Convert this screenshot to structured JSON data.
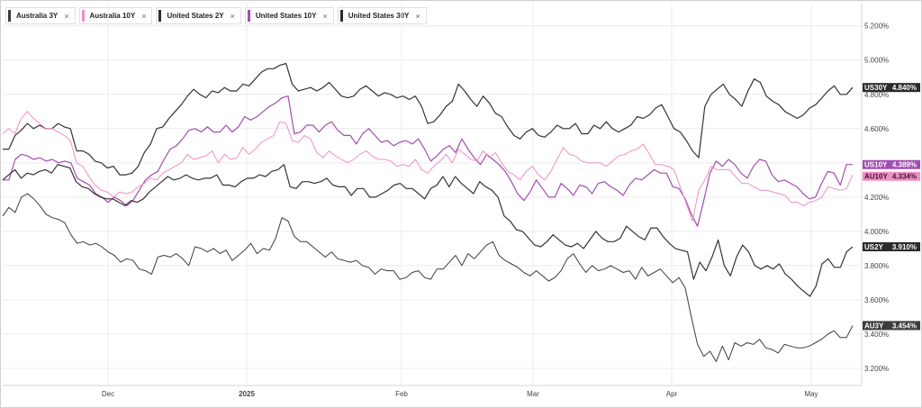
{
  "legend": [
    {
      "label": "Australia 3Y",
      "color": "#3c3c3c"
    },
    {
      "label": "Australia 10Y",
      "color": "#f28ec6"
    },
    {
      "label": "United States 2Y",
      "color": "#2b2b2b"
    },
    {
      "label": "United States 10Y",
      "color": "#a24db0"
    },
    {
      "label": "United States 30Y",
      "color": "#2b2b2b"
    }
  ],
  "close_icon": "×",
  "chart_data": {
    "type": "line",
    "x_labels": [
      "Dec",
      "2025",
      "Feb",
      "Mar",
      "Apr",
      "May"
    ],
    "y_ticks": [
      "5.200%",
      "5.000%",
      "4.800%",
      "4.600%",
      "4.400%",
      "4.200%",
      "4.000%",
      "3.800%",
      "3.600%",
      "3.400%",
      "3.200%"
    ],
    "ylim": [
      3.1,
      5.33
    ],
    "grid": true,
    "series": [
      {
        "name": "US30Y",
        "value_label": "4.840%",
        "color": "#333333",
        "tag_bg": "#2b2b2b",
        "tag_fg": "#ffffff",
        "width": 1.2,
        "values": [
          4.48,
          4.48,
          4.56,
          4.59,
          4.63,
          4.6,
          4.62,
          4.6,
          4.6,
          4.63,
          4.61,
          4.6,
          4.47,
          4.47,
          4.45,
          4.41,
          4.4,
          4.37,
          4.38,
          4.33,
          4.33,
          4.34,
          4.38,
          4.46,
          4.51,
          4.6,
          4.61,
          4.66,
          4.7,
          4.74,
          4.79,
          4.83,
          4.8,
          4.78,
          4.82,
          4.81,
          4.84,
          4.82,
          4.82,
          4.86,
          4.85,
          4.89,
          4.93,
          4.95,
          4.95,
          4.97,
          4.98,
          4.86,
          4.82,
          4.83,
          4.84,
          4.82,
          4.84,
          4.87,
          4.83,
          4.79,
          4.78,
          4.79,
          4.83,
          4.85,
          4.82,
          4.79,
          4.81,
          4.8,
          4.78,
          4.79,
          4.77,
          4.79,
          4.73,
          4.63,
          4.64,
          4.68,
          4.73,
          4.76,
          4.86,
          4.82,
          4.77,
          4.73,
          4.79,
          4.75,
          4.69,
          4.67,
          4.61,
          4.56,
          4.54,
          4.58,
          4.6,
          4.56,
          4.55,
          4.58,
          4.62,
          4.6,
          4.6,
          4.63,
          4.57,
          4.57,
          4.62,
          4.6,
          4.64,
          4.6,
          4.58,
          4.6,
          4.62,
          4.67,
          4.66,
          4.68,
          4.72,
          4.74,
          4.67,
          4.6,
          4.58,
          4.53,
          4.47,
          4.43,
          4.73,
          4.8,
          4.83,
          4.86,
          4.8,
          4.77,
          4.73,
          4.82,
          4.89,
          4.87,
          4.79,
          4.76,
          4.74,
          4.7,
          4.68,
          4.66,
          4.68,
          4.72,
          4.74,
          4.78,
          4.82,
          4.85,
          4.8,
          4.8,
          4.84
        ]
      },
      {
        "name": "US10Y",
        "value_label": "4.389%",
        "color": "#a24db0",
        "tag_bg": "#a24db0",
        "tag_fg": "#ffffff",
        "width": 1.2,
        "values": [
          4.3,
          4.3,
          4.42,
          4.45,
          4.44,
          4.42,
          4.43,
          4.41,
          4.42,
          4.4,
          4.41,
          4.4,
          4.31,
          4.29,
          4.27,
          4.22,
          4.2,
          4.17,
          4.2,
          4.18,
          4.15,
          4.18,
          4.24,
          4.3,
          4.33,
          4.35,
          4.42,
          4.48,
          4.5,
          4.54,
          4.59,
          4.6,
          4.58,
          4.61,
          4.58,
          4.58,
          4.62,
          4.58,
          4.61,
          4.67,
          4.65,
          4.67,
          4.7,
          4.73,
          4.75,
          4.78,
          4.79,
          4.57,
          4.58,
          4.62,
          4.62,
          4.58,
          4.62,
          4.64,
          4.59,
          4.56,
          4.56,
          4.51,
          4.57,
          4.6,
          4.56,
          4.52,
          4.53,
          4.5,
          4.52,
          4.53,
          4.51,
          4.54,
          4.48,
          4.41,
          4.44,
          4.48,
          4.5,
          4.46,
          4.54,
          4.48,
          4.43,
          4.39,
          4.45,
          4.42,
          4.39,
          4.35,
          4.29,
          4.22,
          4.18,
          4.23,
          4.3,
          4.25,
          4.2,
          4.2,
          4.28,
          4.25,
          4.21,
          4.27,
          4.26,
          4.22,
          4.28,
          4.29,
          4.26,
          4.24,
          4.21,
          4.27,
          4.31,
          4.3,
          4.33,
          4.36,
          4.34,
          4.34,
          4.26,
          4.25,
          4.19,
          4.1,
          4.03,
          4.18,
          4.34,
          4.41,
          4.38,
          4.42,
          4.39,
          4.34,
          4.31,
          4.38,
          4.42,
          4.41,
          4.33,
          4.29,
          4.3,
          4.28,
          4.26,
          4.22,
          4.19,
          4.2,
          4.28,
          4.35,
          4.34,
          4.27,
          4.39,
          4.39
        ]
      },
      {
        "name": "AU10Y",
        "value_label": "4.334%",
        "color": "#f28ec6",
        "tag_bg": "#f28ec6",
        "tag_fg": "#3a1a2b",
        "width": 1,
        "values": [
          4.57,
          4.6,
          4.57,
          4.66,
          4.7,
          4.66,
          4.63,
          4.6,
          4.6,
          4.58,
          4.56,
          4.53,
          4.4,
          4.38,
          4.32,
          4.27,
          4.24,
          4.23,
          4.2,
          4.23,
          4.22,
          4.23,
          4.26,
          4.28,
          4.31,
          4.3,
          4.34,
          4.36,
          4.38,
          4.4,
          4.45,
          4.42,
          4.43,
          4.44,
          4.47,
          4.4,
          4.45,
          4.42,
          4.43,
          4.49,
          4.45,
          4.48,
          4.52,
          4.54,
          4.56,
          4.64,
          4.63,
          4.53,
          4.52,
          4.56,
          4.54,
          4.46,
          4.43,
          4.47,
          4.44,
          4.42,
          4.4,
          4.42,
          4.45,
          4.47,
          4.44,
          4.42,
          4.42,
          4.41,
          4.38,
          4.39,
          4.38,
          4.42,
          4.36,
          4.34,
          4.38,
          4.41,
          4.45,
          4.4,
          4.48,
          4.45,
          4.42,
          4.41,
          4.47,
          4.43,
          4.46,
          4.4,
          4.35,
          4.33,
          4.3,
          4.35,
          4.38,
          4.33,
          4.3,
          4.35,
          4.42,
          4.49,
          4.45,
          4.44,
          4.41,
          4.4,
          4.4,
          4.4,
          4.38,
          4.41,
          4.44,
          4.45,
          4.47,
          4.48,
          4.51,
          4.45,
          4.39,
          4.39,
          4.38,
          4.36,
          4.26,
          4.16,
          4.06,
          4.24,
          4.3,
          4.38,
          4.36,
          4.36,
          4.36,
          4.32,
          4.28,
          4.28,
          4.26,
          4.24,
          4.24,
          4.23,
          4.22,
          4.21,
          4.17,
          4.17,
          4.15,
          4.17,
          4.18,
          4.2,
          4.26,
          4.25,
          4.24,
          4.25,
          4.33
        ]
      },
      {
        "name": "US2Y",
        "value_label": "3.910%",
        "color": "#333333",
        "tag_bg": "#2b2b2b",
        "tag_fg": "#ffffff",
        "width": 1.2,
        "values": [
          4.3,
          4.33,
          4.36,
          4.31,
          4.34,
          4.33,
          4.35,
          4.36,
          4.34,
          4.39,
          4.38,
          4.37,
          4.29,
          4.26,
          4.25,
          4.22,
          4.2,
          4.19,
          4.19,
          4.17,
          4.15,
          4.18,
          4.17,
          4.19,
          4.23,
          4.26,
          4.29,
          4.32,
          4.3,
          4.31,
          4.33,
          4.31,
          4.3,
          4.31,
          4.31,
          4.33,
          4.27,
          4.27,
          4.26,
          4.29,
          4.31,
          4.31,
          4.33,
          4.32,
          4.35,
          4.36,
          4.39,
          4.26,
          4.25,
          4.29,
          4.29,
          4.28,
          4.29,
          4.31,
          4.27,
          4.26,
          4.26,
          4.21,
          4.25,
          4.25,
          4.2,
          4.2,
          4.22,
          4.24,
          4.27,
          4.28,
          4.25,
          4.25,
          4.22,
          4.19,
          4.25,
          4.27,
          4.32,
          4.26,
          4.32,
          4.28,
          4.25,
          4.22,
          4.29,
          4.26,
          4.24,
          4.2,
          4.09,
          4.06,
          4.01,
          4.0,
          3.96,
          3.92,
          3.91,
          3.94,
          3.98,
          3.95,
          3.92,
          3.91,
          3.93,
          3.9,
          3.95,
          4.0,
          3.96,
          3.94,
          3.94,
          3.96,
          4.03,
          4.0,
          3.97,
          3.95,
          4.02,
          4.02,
          3.97,
          3.93,
          3.9,
          3.89,
          3.88,
          3.72,
          3.82,
          3.77,
          3.85,
          3.95,
          3.8,
          3.74,
          3.85,
          3.92,
          3.88,
          3.8,
          3.78,
          3.8,
          3.78,
          3.81,
          3.75,
          3.72,
          3.68,
          3.65,
          3.62,
          3.68,
          3.81,
          3.84,
          3.79,
          3.79,
          3.88,
          3.91
        ]
      },
      {
        "name": "AU3Y",
        "value_label": "3.454%",
        "color": "#3c3c3c",
        "tag_bg": "#3c3c3c",
        "tag_fg": "#ffffff",
        "width": 1,
        "values": [
          4.09,
          4.14,
          4.11,
          4.2,
          4.22,
          4.19,
          4.15,
          4.1,
          4.08,
          4.07,
          4.05,
          3.98,
          3.93,
          3.94,
          3.92,
          3.93,
          3.91,
          3.88,
          3.86,
          3.82,
          3.84,
          3.83,
          3.78,
          3.77,
          3.75,
          3.85,
          3.86,
          3.85,
          3.87,
          3.84,
          3.8,
          3.91,
          3.9,
          3.88,
          3.9,
          3.87,
          3.89,
          3.83,
          3.86,
          3.89,
          3.93,
          3.87,
          3.9,
          3.89,
          3.96,
          4.08,
          4.06,
          3.97,
          3.94,
          3.94,
          3.91,
          3.88,
          3.85,
          3.88,
          3.84,
          3.83,
          3.82,
          3.83,
          3.8,
          3.79,
          3.75,
          3.78,
          3.77,
          3.77,
          3.72,
          3.73,
          3.76,
          3.77,
          3.73,
          3.72,
          3.78,
          3.78,
          3.82,
          3.86,
          3.8,
          3.87,
          3.84,
          3.88,
          3.92,
          3.94,
          3.86,
          3.83,
          3.81,
          3.79,
          3.76,
          3.74,
          3.77,
          3.74,
          3.71,
          3.73,
          3.77,
          3.84,
          3.87,
          3.81,
          3.76,
          3.8,
          3.77,
          3.78,
          3.8,
          3.78,
          3.76,
          3.77,
          3.72,
          3.79,
          3.74,
          3.76,
          3.78,
          3.74,
          3.7,
          3.73,
          3.67,
          3.5,
          3.34,
          3.27,
          3.3,
          3.24,
          3.33,
          3.25,
          3.35,
          3.33,
          3.35,
          3.34,
          3.37,
          3.32,
          3.31,
          3.29,
          3.34,
          3.33,
          3.32,
          3.32,
          3.33,
          3.35,
          3.37,
          3.4,
          3.42,
          3.38,
          3.38,
          3.45
        ]
      }
    ]
  }
}
